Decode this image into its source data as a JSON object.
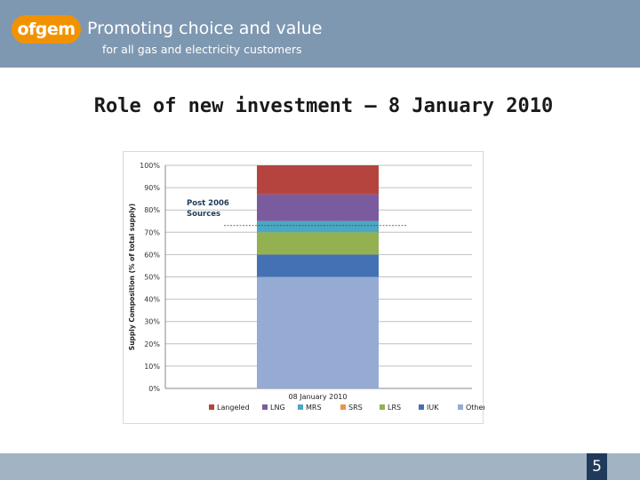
{
  "header": {
    "logo_text": "ofgem",
    "tagline_line1": "Promoting choice and value",
    "tagline_line2": "for all gas and electricity customers"
  },
  "slide": {
    "title": "Role of new investment – 8 January 2010",
    "page_number": "5"
  },
  "colors": {
    "header_bg": "#7f98b1",
    "logo_orange": "#f39200",
    "footer_bg": "#a2b3c4",
    "page_box": "#1f3a5a"
  },
  "chart_data": {
    "type": "bar",
    "stacked": true,
    "categories": [
      "08 January 2010"
    ],
    "ylabel": "Supply Composition (% of total supply)",
    "yticks": [
      "0%",
      "10%",
      "20%",
      "30%",
      "40%",
      "50%",
      "60%",
      "70%",
      "80%",
      "90%",
      "100%"
    ],
    "ylim": [
      0,
      100
    ],
    "grid": true,
    "legend_position": "bottom",
    "series": [
      {
        "name": "Other",
        "color": "#95abd3",
        "values": [
          50
        ]
      },
      {
        "name": "IUK",
        "color": "#4471b3",
        "values": [
          10
        ]
      },
      {
        "name": "LRS",
        "color": "#93b151",
        "values": [
          10
        ]
      },
      {
        "name": "SRS",
        "color": "#e7954a",
        "values": [
          0
        ]
      },
      {
        "name": "MRS",
        "color": "#4aa8c2",
        "values": [
          5
        ]
      },
      {
        "name": "LNG",
        "color": "#7a5c9e",
        "values": [
          12
        ]
      },
      {
        "name": "Langeled",
        "color": "#b5443f",
        "values": [
          13
        ]
      }
    ],
    "legend_order": [
      "Langeled",
      "LNG",
      "MRS",
      "SRS",
      "LRS",
      "IUK",
      "Other"
    ],
    "annotation": {
      "text_line1": "Post 2006",
      "text_line2": "Sources",
      "threshold_value": 73
    }
  }
}
